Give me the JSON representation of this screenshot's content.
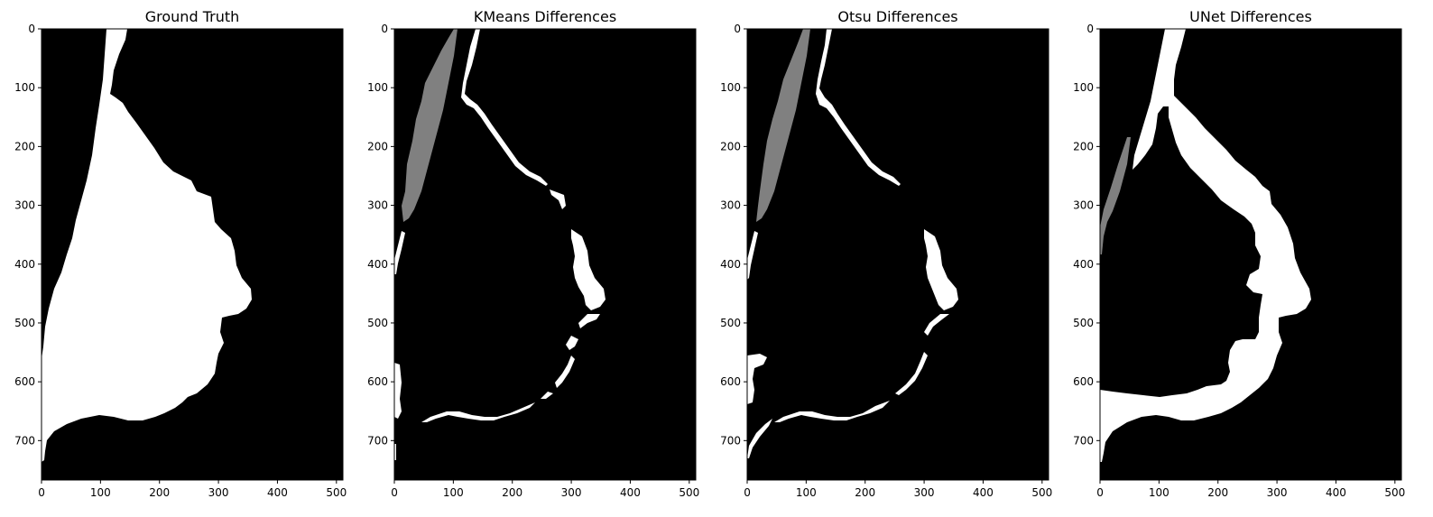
{
  "figure": {
    "panels": [
      {
        "key": "ground_truth",
        "title": "Ground Truth"
      },
      {
        "key": "kmeans",
        "title": "KMeans Differences"
      },
      {
        "key": "otsu",
        "title": "Otsu Differences"
      },
      {
        "key": "unet",
        "title": "UNet Differences"
      }
    ],
    "x_ticks": [
      "0",
      "100",
      "200",
      "300",
      "400",
      "500"
    ],
    "y_ticks": [
      "0",
      "100",
      "200",
      "300",
      "400",
      "500",
      "600",
      "700"
    ],
    "image_extent": {
      "x": [
        0,
        511
      ],
      "y": [
        767,
        0
      ]
    },
    "colors": {
      "background": "#000000",
      "foreground": "#ffffff",
      "gray": "#808080",
      "figure": "#ffffff"
    }
  }
}
